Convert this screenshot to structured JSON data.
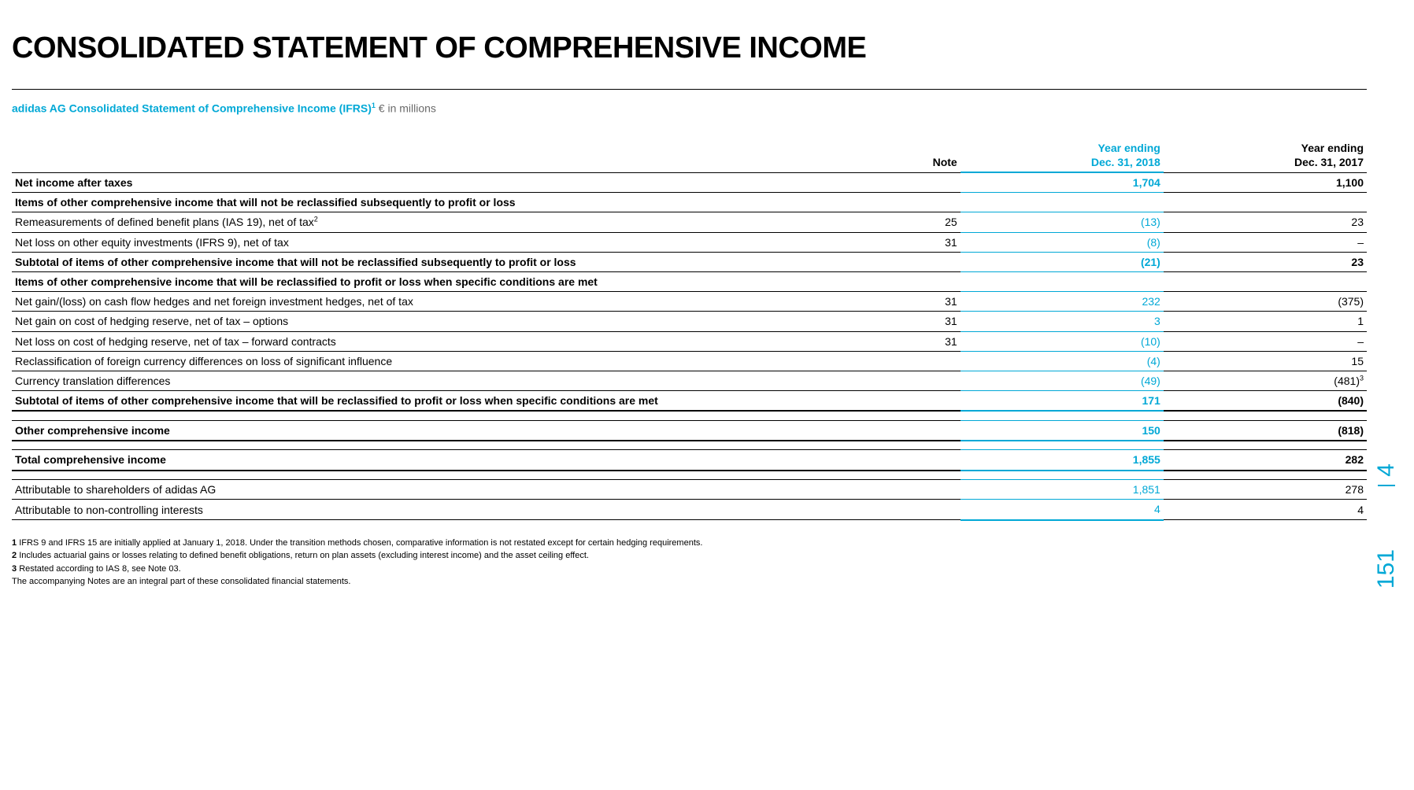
{
  "page_title": "CONSOLIDATED STATEMENT OF COMPREHENSIVE INCOME",
  "subtitle_accent": "adidas AG Consolidated Statement of Comprehensive Income (IFRS)",
  "subtitle_sup": "1",
  "subtitle_unit": " € in millions",
  "columns": {
    "note": "Note",
    "y2018_line1": "Year ending",
    "y2018_line2": "Dec. 31, 2018",
    "y2017_line1": "Year ending",
    "y2017_line2": "Dec. 31, 2017"
  },
  "rows": [
    {
      "label": "Net income after taxes",
      "bold": true,
      "note": "",
      "v2018": "1,704",
      "v2017": "1,100",
      "v2018_bold": true,
      "v2017_bold": true
    },
    {
      "label": "Items of other comprehensive income that will not be reclassified subsequently to profit or loss",
      "bold": true,
      "note": "",
      "v2018": "",
      "v2017": ""
    },
    {
      "label": "Remeasurements of defined benefit plans (IAS 19), net of tax",
      "sup": "2",
      "note": "25",
      "v2018": "(13)",
      "v2017": "23"
    },
    {
      "label": "Net loss on other equity investments (IFRS 9), net of tax",
      "note": "31",
      "v2018": "(8)",
      "v2017": "–"
    },
    {
      "label": "Subtotal of items of other comprehensive income that will not be reclassified subsequently to profit or loss",
      "bold": true,
      "note": "",
      "v2018": "(21)",
      "v2017": "23",
      "v2018_bold": true,
      "v2017_bold": true
    },
    {
      "label": "Items of other comprehensive income that will be reclassified to profit or loss when specific conditions are met",
      "bold": true,
      "note": "",
      "v2018": "",
      "v2017": ""
    },
    {
      "label": "Net gain/(loss) on cash flow hedges and net foreign investment hedges, net of tax",
      "note": "31",
      "v2018": "232",
      "v2017": "(375)"
    },
    {
      "label": "Net gain on cost of hedging reserve, net of tax – options",
      "note": "31",
      "v2018": "3",
      "v2017": "1"
    },
    {
      "label": "Net loss on cost of hedging reserve, net of tax – forward contracts",
      "note": "31",
      "v2018": "(10)",
      "v2017": "–"
    },
    {
      "label": "Reclassification of foreign currency differences on loss of significant influence",
      "note": "",
      "v2018": "(4)",
      "v2017": "15"
    },
    {
      "label": "Currency translation differences",
      "note": "",
      "v2018": "(49)",
      "v2017": "(481)",
      "v2017_sup": "3"
    },
    {
      "label": "Subtotal of items of other comprehensive income that will be reclassified to profit or loss when specific conditions are met",
      "bold": true,
      "note": "",
      "v2018": "171",
      "v2017": "(840)",
      "v2018_bold": true,
      "v2017_bold": true,
      "thick": true
    },
    {
      "spacer": true
    },
    {
      "label": "Other comprehensive income",
      "bold": true,
      "note": "",
      "v2018": "150",
      "v2017": "(818)",
      "v2018_bold": true,
      "v2017_bold": true,
      "thick": true,
      "pre_thin": true
    },
    {
      "spacer": true
    },
    {
      "label": "Total comprehensive income",
      "bold": true,
      "note": "",
      "v2018": "1,855",
      "v2017": "282",
      "v2018_bold": true,
      "v2017_bold": true,
      "thick": true,
      "pre_thin": true
    },
    {
      "spacer": true
    },
    {
      "label": "Attributable to shareholders of adidas AG",
      "note": "",
      "v2018": "1,851",
      "v2017": "278",
      "pre_thin": true
    },
    {
      "label": "Attributable to non-controlling interests",
      "note": "",
      "v2018": "4",
      "v2017": "4",
      "cyan_thick_2018": true
    }
  ],
  "footnotes": [
    {
      "n": "1",
      "text": "IFRS 9 and IFRS 15 are initially applied at January 1, 2018. Under the transition methods chosen, comparative information is not restated except for certain hedging requirements."
    },
    {
      "n": "2",
      "text": "Includes actuarial gains or losses relating to defined benefit obligations, return on plan assets (excluding interest income) and the asset ceiling effect."
    },
    {
      "n": "3",
      "text": "Restated according to IAS 8, see Note 03."
    }
  ],
  "footnote_final": "The accompanying Notes are an integral part of these consolidated financial statements.",
  "side_num_top": "4",
  "side_num_bottom": "151",
  "colors": {
    "accent": "#00a8d6",
    "text": "#000000"
  }
}
